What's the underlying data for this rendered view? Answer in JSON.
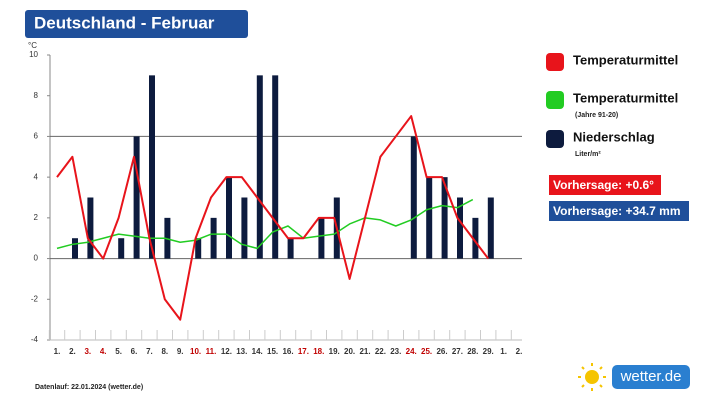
{
  "chart_data": {
    "type": "bar_line",
    "title": "Deutschland - Februar",
    "y_label": "°C",
    "categories": [
      "1.",
      "2.",
      "3.",
      "4.",
      "5.",
      "6.",
      "7.",
      "8.",
      "9.",
      "10.",
      "11.",
      "12.",
      "13.",
      "14.",
      "15.",
      "16.",
      "17.",
      "18.",
      "19.",
      "20.",
      "21.",
      "22.",
      "23.",
      "24.",
      "25.",
      "26.",
      "27.",
      "28.",
      "29.",
      "1.",
      "2."
    ],
    "category_colors": [
      "#333",
      "#333",
      "#c00000",
      "#c00000",
      "#333",
      "#333",
      "#333",
      "#333",
      "#333",
      "#c00000",
      "#c00000",
      "#333",
      "#333",
      "#333",
      "#333",
      "#333",
      "#c00000",
      "#c00000",
      "#333",
      "#333",
      "#333",
      "#333",
      "#333",
      "#c00000",
      "#c00000",
      "#333",
      "#333",
      "#333",
      "#333",
      "#333",
      "#333"
    ],
    "series": [
      {
        "name": "Temperaturmittel",
        "color": "#e8141b",
        "kind": "line",
        "values": [
          4,
          5,
          1,
          0,
          2,
          5,
          1,
          -2,
          -3,
          1,
          3,
          4,
          4,
          3,
          2,
          1,
          1,
          2,
          2,
          -1,
          2,
          5,
          6,
          7,
          4,
          4,
          2,
          1,
          0,
          null,
          null
        ]
      },
      {
        "name": "Temperaturmittel",
        "sublabel": "(Jahre 91-20)",
        "color": "#22cc22",
        "kind": "line",
        "values": [
          0.5,
          0.7,
          0.8,
          1.0,
          1.2,
          1.1,
          1.0,
          1.0,
          0.8,
          0.9,
          1.2,
          1.2,
          0.7,
          0.5,
          1.3,
          1.6,
          1.0,
          1.1,
          1.2,
          1.7,
          2.0,
          1.9,
          1.6,
          1.9,
          2.4,
          2.6,
          2.5,
          2.9,
          null,
          null,
          null
        ]
      },
      {
        "name": "Niederschlag",
        "sublabel": "Liter/m²",
        "color": "#0d1b3e",
        "kind": "bar",
        "values": [
          0,
          1,
          3,
          0,
          1,
          6,
          9,
          2,
          0,
          1,
          2,
          4,
          3,
          9,
          9,
          1,
          0,
          2,
          3,
          0,
          0,
          0,
          0,
          6,
          4,
          4,
          3,
          2,
          3,
          null,
          null
        ]
      }
    ],
    "ylim": [
      -4,
      10
    ],
    "yticks": [
      -4,
      -2,
      0,
      2,
      4,
      6,
      8,
      10
    ],
    "grid_values": [
      0,
      6
    ],
    "forecasts": [
      {
        "label": "Vorhersage: +0.6°",
        "color": "#e8141b"
      },
      {
        "label": "Vorhersage: +34.7 mm",
        "color": "#1f4f9a"
      }
    ],
    "footer": "Datenlauf: 22.01.2024 (wetter.de)",
    "logo": "wetter.de"
  }
}
